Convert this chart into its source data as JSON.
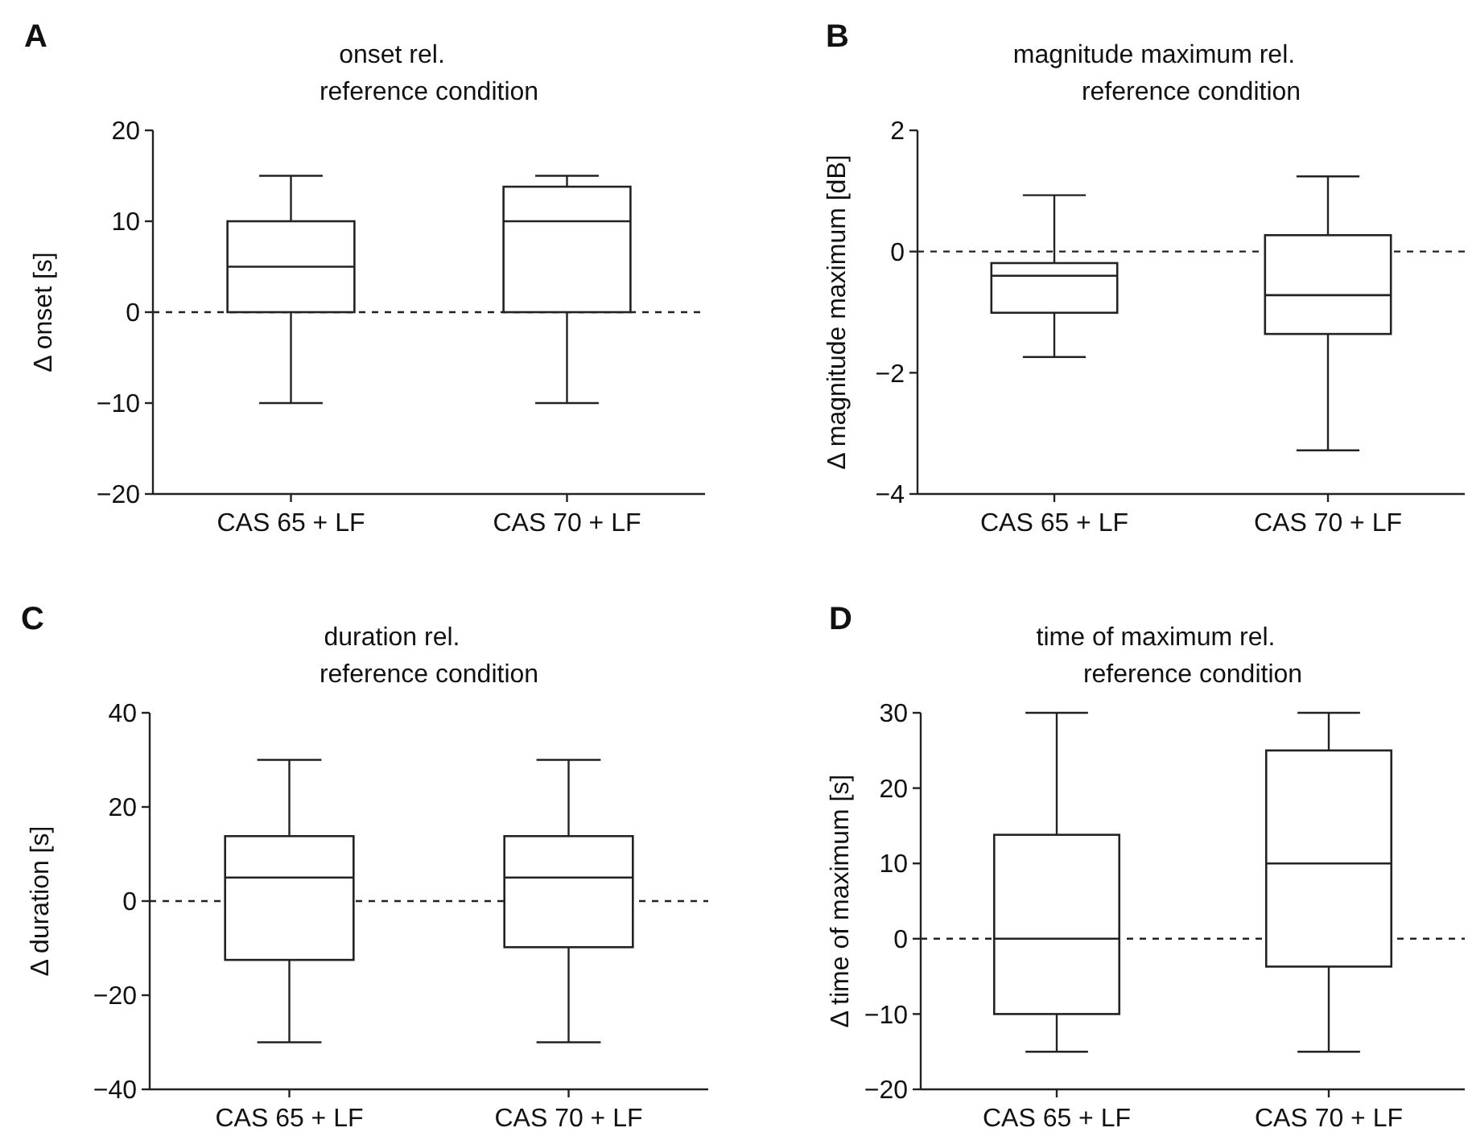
{
  "chart_data": [
    {
      "type": "box",
      "title": "onset rel.\nreference condition",
      "ylabel": "Δ onset [s]",
      "annotations": [
        "A"
      ],
      "categories": [
        "CAS 65 + LF",
        "CAS 70 + LF"
      ],
      "boxes": [
        {
          "low": -10,
          "q1": 0,
          "median": 5,
          "q3": 10,
          "high": 15
        },
        {
          "low": -10,
          "q1": 0,
          "median": 10,
          "q3": 13.8,
          "high": 15
        }
      ],
      "ylim": [
        -20,
        20
      ],
      "yticks": [
        -20,
        -10,
        0,
        10,
        20
      ],
      "grid": false,
      "ref_lines": [
        {
          "axis": "y",
          "value": 0,
          "line_style": "dashed"
        }
      ]
    },
    {
      "type": "box",
      "title": "magnitude maximum rel.\nreference condition",
      "ylabel": "Δ magnitude maximum [dB]",
      "annotations": [
        "B"
      ],
      "categories": [
        "CAS 65 + LF",
        "CAS 70 + LF"
      ],
      "boxes": [
        {
          "low": -1.74,
          "q1": -1.01,
          "median": -0.4,
          "q3": -0.19,
          "high": 0.93
        },
        {
          "low": -3.28,
          "q1": -1.36,
          "median": -0.72,
          "q3": 0.27,
          "high": 1.24
        }
      ],
      "ylim": [
        -4,
        2
      ],
      "yticks": [
        -4,
        -2,
        0,
        2
      ],
      "grid": false,
      "ref_lines": [
        {
          "axis": "y",
          "value": 0,
          "line_style": "dashed"
        }
      ]
    },
    {
      "type": "box",
      "title": "duration rel.\nreference condition",
      "ylabel": "Δ duration [s]",
      "annotations": [
        "C"
      ],
      "categories": [
        "CAS 65 + LF",
        "CAS 70 + LF"
      ],
      "boxes": [
        {
          "low": -30,
          "q1": -12.5,
          "median": 5,
          "q3": 13.8,
          "high": 30
        },
        {
          "low": -30,
          "q1": -9.8,
          "median": 5,
          "q3": 13.8,
          "high": 30
        }
      ],
      "ylim": [
        -40,
        40
      ],
      "yticks": [
        -40,
        -20,
        0,
        20,
        40
      ],
      "grid": false,
      "ref_lines": [
        {
          "axis": "y",
          "value": 0,
          "line_style": "dashed"
        }
      ]
    },
    {
      "type": "box",
      "title": "time of maximum rel.\nreference condition",
      "ylabel": "Δ time of maximum [s]",
      "annotations": [
        "D"
      ],
      "categories": [
        "CAS 65 + LF",
        "CAS 70 + LF"
      ],
      "boxes": [
        {
          "low": -15,
          "q1": -10,
          "median": 0,
          "q3": 13.8,
          "high": 30
        },
        {
          "low": -15,
          "q1": -3.7,
          "median": 10,
          "q3": 25,
          "high": 30
        }
      ],
      "ylim": [
        -20,
        30
      ],
      "yticks": [
        -20,
        -10,
        0,
        10,
        20,
        30
      ],
      "grid": false,
      "ref_lines": [
        {
          "axis": "y",
          "value": 0,
          "line_style": "dashed"
        }
      ]
    }
  ]
}
